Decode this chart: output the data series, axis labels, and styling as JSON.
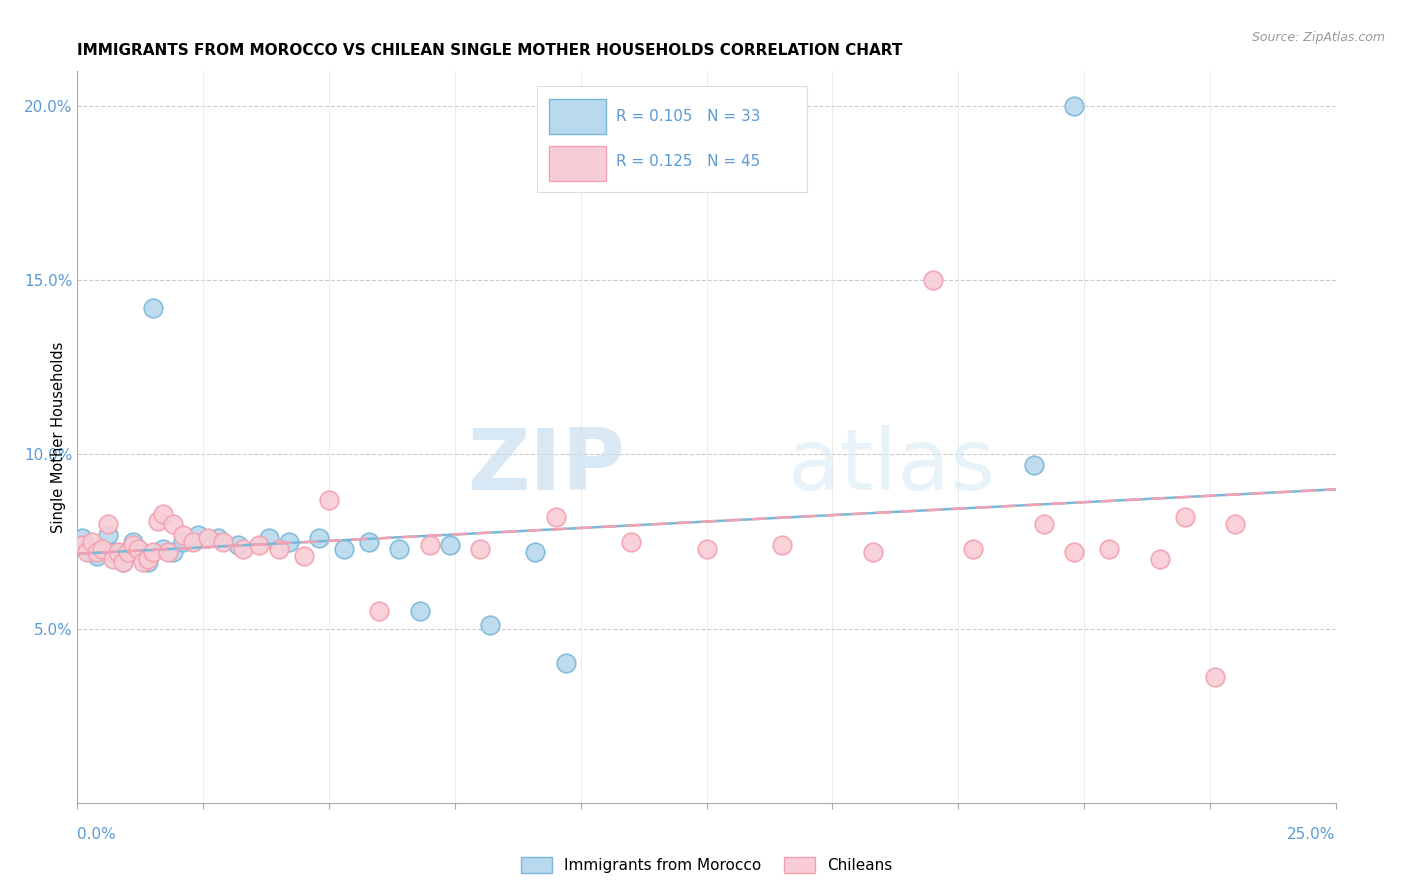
{
  "title": "IMMIGRANTS FROM MOROCCO VS CHILEAN SINGLE MOTHER HOUSEHOLDS CORRELATION CHART",
  "source": "Source: ZipAtlas.com",
  "ylabel": "Single Mother Households",
  "xlim": [
    0.0,
    0.25
  ],
  "ylim": [
    0.0,
    0.21
  ],
  "xlabel_bottom_left": "0.0%",
  "xlabel_bottom_right": "25.0%",
  "morocco_color": "#7ab8d9",
  "morocco_fill": "#b8d9ee",
  "chilean_color": "#f4a0b0",
  "chilean_fill": "#f9cdd5",
  "R_morocco": 0.105,
  "N_morocco": 33,
  "R_chilean": 0.125,
  "N_chilean": 45,
  "background_color": "#ffffff",
  "grid_color": "#cccccc",
  "watermark_zip": "ZIP",
  "watermark_atlas": "atlas",
  "legend_labels": [
    "Immigrants from Morocco",
    "Chileans"
  ],
  "title_fontsize": 11,
  "tick_color": "#5b9bd5",
  "source_color": "#999999",
  "morocco_x": [
    0.001,
    0.002,
    0.003,
    0.004,
    0.005,
    0.006,
    0.007,
    0.008,
    0.009,
    0.01,
    0.011,
    0.012,
    0.014,
    0.015,
    0.017,
    0.019,
    0.021,
    0.024,
    0.028,
    0.032,
    0.038,
    0.042,
    0.048,
    0.053,
    0.058,
    0.064,
    0.068,
    0.074,
    0.082,
    0.091,
    0.097,
    0.19,
    0.198
  ],
  "morocco_y": [
    0.076,
    0.073,
    0.072,
    0.071,
    0.073,
    0.077,
    0.072,
    0.071,
    0.069,
    0.072,
    0.075,
    0.073,
    0.069,
    0.142,
    0.073,
    0.072,
    0.075,
    0.077,
    0.076,
    0.074,
    0.076,
    0.075,
    0.076,
    0.073,
    0.075,
    0.073,
    0.055,
    0.074,
    0.051,
    0.072,
    0.04,
    0.097,
    0.2
  ],
  "chilean_x": [
    0.001,
    0.002,
    0.003,
    0.004,
    0.005,
    0.006,
    0.007,
    0.008,
    0.009,
    0.01,
    0.011,
    0.012,
    0.013,
    0.014,
    0.015,
    0.016,
    0.017,
    0.018,
    0.019,
    0.021,
    0.023,
    0.026,
    0.029,
    0.033,
    0.036,
    0.04,
    0.045,
    0.05,
    0.06,
    0.07,
    0.08,
    0.095,
    0.11,
    0.125,
    0.14,
    0.158,
    0.17,
    0.178,
    0.192,
    0.198,
    0.205,
    0.215,
    0.22,
    0.226,
    0.23
  ],
  "chilean_y": [
    0.074,
    0.072,
    0.075,
    0.072,
    0.073,
    0.08,
    0.07,
    0.072,
    0.069,
    0.072,
    0.074,
    0.073,
    0.069,
    0.07,
    0.072,
    0.081,
    0.083,
    0.072,
    0.08,
    0.077,
    0.075,
    0.076,
    0.075,
    0.073,
    0.074,
    0.073,
    0.071,
    0.087,
    0.055,
    0.074,
    0.073,
    0.082,
    0.075,
    0.073,
    0.074,
    0.072,
    0.15,
    0.073,
    0.08,
    0.072,
    0.073,
    0.07,
    0.082,
    0.036,
    0.08
  ]
}
